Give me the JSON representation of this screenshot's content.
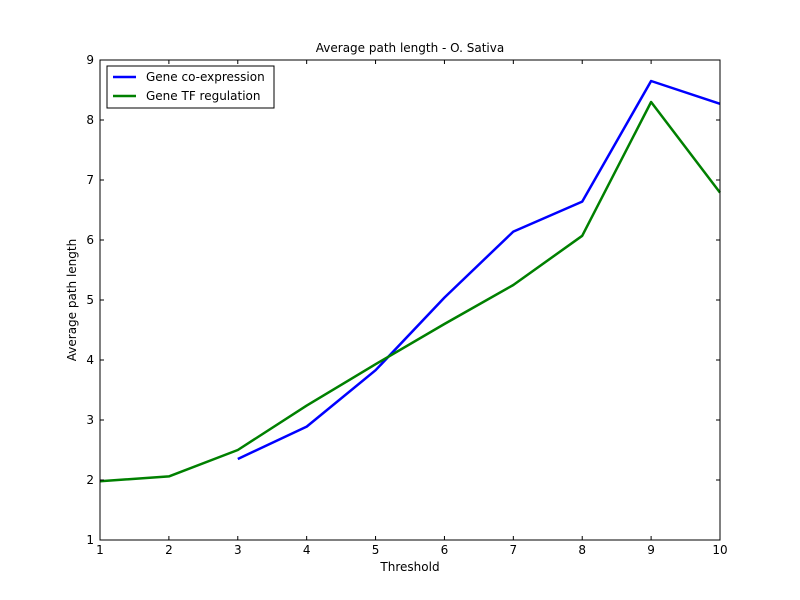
{
  "chart_data": {
    "type": "line",
    "title": "Average path length - O. Sativa",
    "xlabel": "Threshold",
    "ylabel": "Average path length",
    "xlim": [
      1,
      10
    ],
    "ylim": [
      1,
      9
    ],
    "xticks": [
      1,
      2,
      3,
      4,
      5,
      6,
      7,
      8,
      9,
      10
    ],
    "yticks": [
      1,
      2,
      3,
      4,
      5,
      6,
      7,
      8,
      9
    ],
    "grid": false,
    "legend_position": "top-left",
    "series": [
      {
        "name": "Gene co-expression",
        "color": "#0000ff",
        "x": [
          3,
          4,
          5,
          6,
          7,
          8,
          9,
          10
        ],
        "y": [
          2.35,
          2.89,
          3.83,
          5.04,
          6.14,
          6.64,
          8.65,
          8.27
        ]
      },
      {
        "name": "Gene TF regulation",
        "color": "#008000",
        "x": [
          1,
          2,
          3,
          4,
          5,
          6,
          7,
          8,
          9,
          10
        ],
        "y": [
          1.98,
          2.06,
          2.5,
          3.24,
          3.93,
          4.6,
          5.25,
          6.07,
          8.3,
          6.79
        ]
      }
    ]
  }
}
